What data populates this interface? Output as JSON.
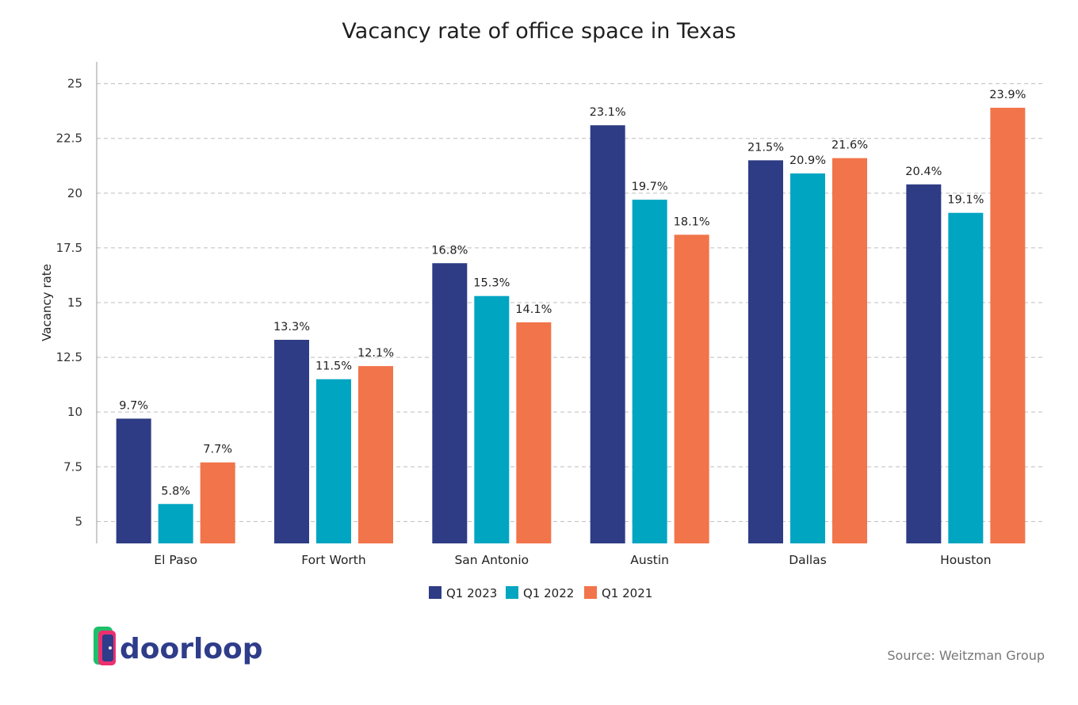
{
  "chart_data": {
    "type": "bar",
    "title": "Vacancy rate of office space in Texas",
    "xlabel": "",
    "ylabel": "Vacancy rate",
    "ylim": [
      4,
      26
    ],
    "yticks": [
      "5",
      "7.5",
      "10",
      "12.5",
      "15",
      "17.5",
      "20",
      "22.5",
      "25"
    ],
    "grid": true,
    "legend_position": "bottom",
    "categories": [
      "El Paso",
      "Fort Worth",
      "San Antonio",
      "Austin",
      "Dallas",
      "Houston"
    ],
    "series": [
      {
        "name": "Q1 2023",
        "color": "#2e3c85",
        "values": [
          9.7,
          13.3,
          16.8,
          23.1,
          21.5,
          20.4
        ],
        "labels": [
          "9.7%",
          "13.3%",
          "16.8%",
          "23.1%",
          "21.5%",
          "20.4%"
        ]
      },
      {
        "name": "Q1 2022",
        "color": "#00a5c1",
        "values": [
          5.8,
          11.5,
          15.3,
          19.7,
          20.9,
          19.1
        ],
        "labels": [
          "5.8%",
          "11.5%",
          "15.3%",
          "19.7%",
          "20.9%",
          "19.1%"
        ]
      },
      {
        "name": "Q1 2021",
        "color": "#f2744a",
        "values": [
          7.7,
          12.1,
          14.1,
          18.1,
          21.6,
          23.9
        ],
        "labels": [
          "7.7%",
          "12.1%",
          "14.1%",
          "18.1%",
          "21.6%",
          "23.9%"
        ]
      }
    ]
  },
  "footer": {
    "source": "Source: Weitzman Group",
    "logo_text": "doorloop",
    "logo_icon": "door-icon"
  }
}
